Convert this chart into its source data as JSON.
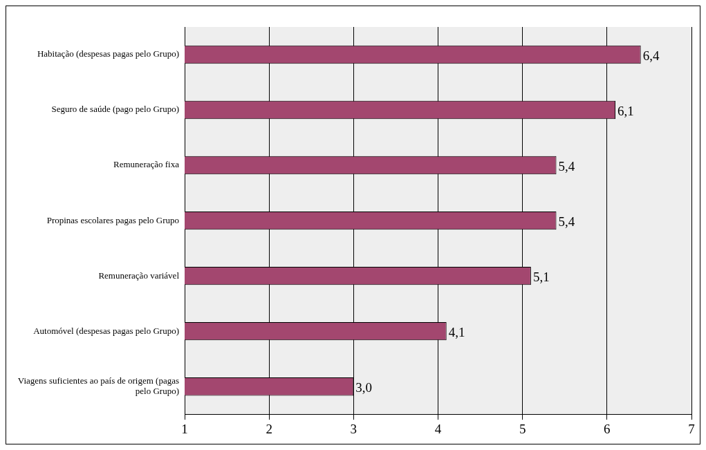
{
  "chart_data": {
    "type": "bar",
    "orientation": "horizontal",
    "categories": [
      "Habitação (despesas pagas pelo Grupo)",
      "Seguro de saúde (pago pelo Grupo)",
      "Remuneração fixa",
      "Propinas escolares pagas pelo Grupo",
      "Remuneração variável",
      "Automóvel (despesas pagas pelo Grupo)",
      "Viagens suficientes ao país de origem (pagas pelo Grupo)"
    ],
    "values": [
      6.4,
      6.1,
      5.4,
      5.4,
      5.1,
      4.1,
      3.0
    ],
    "value_labels": [
      "6,4",
      "6,1",
      "5,4",
      "5,4",
      "5,1",
      "4,1",
      "3,0"
    ],
    "color": "#a3476f",
    "xlim": [
      1,
      7
    ],
    "xticks": [
      1,
      2,
      3,
      4,
      5,
      6,
      7
    ],
    "grid": "x",
    "legend": false
  }
}
